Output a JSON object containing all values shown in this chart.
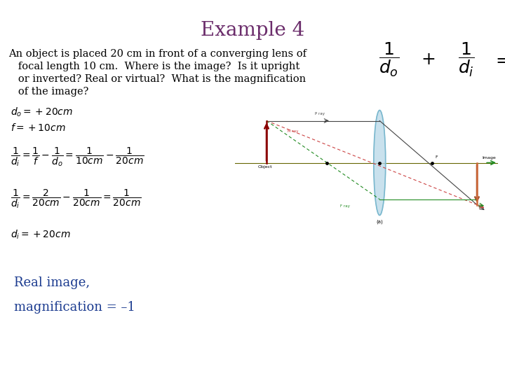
{
  "title": "Example 4",
  "title_color": "#6B2D6B",
  "title_fontsize": 20,
  "bg_color": "#FFFFFF",
  "problem_text_lines": [
    "An object is placed 20 cm in front of a converging lens of",
    "   focal length 10 cm.  Where is the image?  Is it upright",
    "   or inverted? Real or virtual?  What is the magnification",
    "   of the image?"
  ],
  "problem_fontsize": 10.5,
  "conclusion_lines": [
    "Real image,",
    "magnification = –1"
  ],
  "conclusion_color": "#1a3a8f",
  "conclusion_fontsize": 13
}
